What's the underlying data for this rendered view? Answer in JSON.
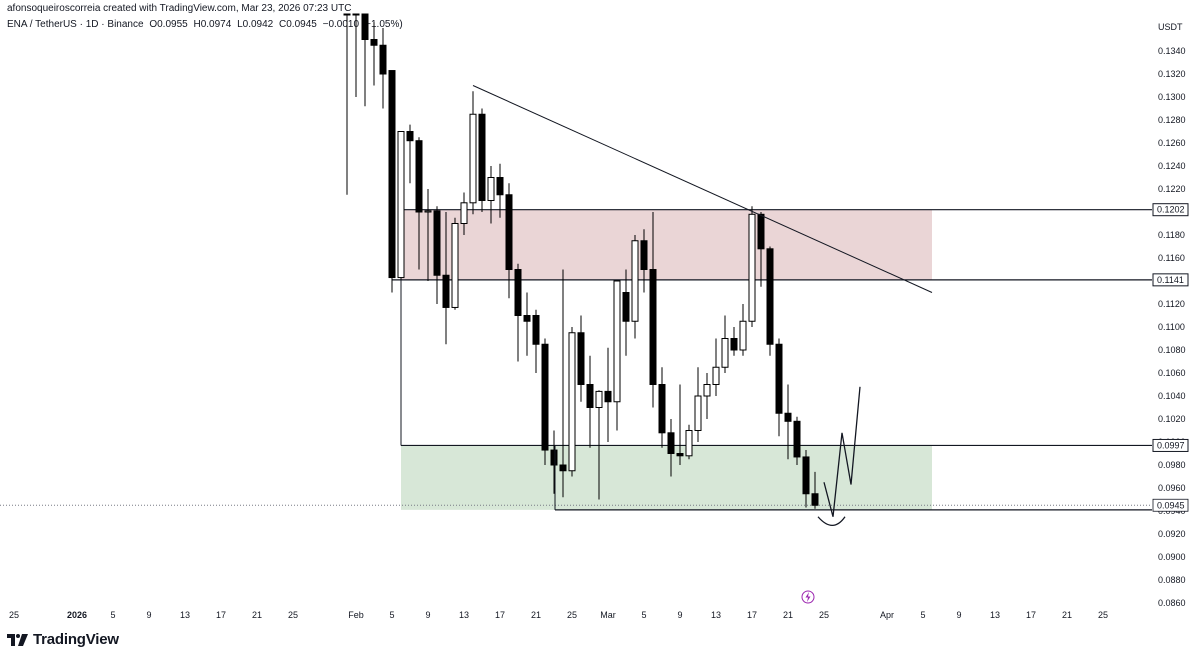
{
  "header": {
    "credit": "afonsoqueiroscorreia created with TradingView.com, Mar 23, 2026 07:23 UTC",
    "symbol": "ENA / TetherUS · 1D · Binance",
    "open": "O0.0955",
    "high": "H0.0974",
    "low": "L0.0942",
    "close": "C0.0945",
    "change": "−0.0010 (−1.05%)"
  },
  "axis": {
    "currency": "USDT"
  },
  "brand": {
    "name": "TradingView"
  },
  "colors": {
    "bull_fill": "#ffffff",
    "bear_fill": "#000000",
    "supply_zone": "#d9b3b5",
    "demand_zone": "#b7d3b7"
  },
  "chart_data": {
    "type": "candlestick",
    "interval": "1D",
    "y_ticks": [
      "0.1340",
      "0.1320",
      "0.1300",
      "0.1280",
      "0.1260",
      "0.1240",
      "0.1220",
      "0.1200",
      "0.1180",
      "0.1160",
      "0.1140",
      "0.1120",
      "0.1100",
      "0.1080",
      "0.1060",
      "0.1040",
      "0.1020",
      "0.1000",
      "0.0980",
      "0.0960",
      "0.0940",
      "0.0920",
      "0.0900",
      "0.0880",
      "0.0860"
    ],
    "x_ticks": [
      {
        "label": "25",
        "date": "2025-12-25"
      },
      {
        "label": "2026",
        "date": "2026-01-01",
        "bold": true
      },
      {
        "label": "5",
        "date": "2026-01-05"
      },
      {
        "label": "9",
        "date": "2026-01-09"
      },
      {
        "label": "13",
        "date": "2026-01-13"
      },
      {
        "label": "17",
        "date": "2026-01-17"
      },
      {
        "label": "21",
        "date": "2026-01-21"
      },
      {
        "label": "25",
        "date": "2026-01-25"
      },
      {
        "label": "Feb",
        "date": "2026-02-01"
      },
      {
        "label": "5",
        "date": "2026-02-05"
      },
      {
        "label": "9",
        "date": "2026-02-09"
      },
      {
        "label": "13",
        "date": "2026-02-13"
      },
      {
        "label": "17",
        "date": "2026-02-17"
      },
      {
        "label": "21",
        "date": "2026-02-21"
      },
      {
        "label": "25",
        "date": "2026-02-25"
      },
      {
        "label": "Mar",
        "date": "2026-03-01"
      },
      {
        "label": "5",
        "date": "2026-03-05"
      },
      {
        "label": "9",
        "date": "2026-03-09"
      },
      {
        "label": "13",
        "date": "2026-03-13"
      },
      {
        "label": "17",
        "date": "2026-03-17"
      },
      {
        "label": "21",
        "date": "2026-03-21"
      },
      {
        "label": "25",
        "date": "2026-03-25"
      },
      {
        "label": "Apr",
        "date": "2026-04-01"
      },
      {
        "label": "5",
        "date": "2026-04-05"
      },
      {
        "label": "9",
        "date": "2026-04-09"
      },
      {
        "label": "13",
        "date": "2026-04-13"
      },
      {
        "label": "17",
        "date": "2026-04-17"
      },
      {
        "label": "21",
        "date": "2026-04-21"
      },
      {
        "label": "25",
        "date": "2026-04-25"
      }
    ],
    "candles": [
      {
        "date": "2026-01-31",
        "o": 0.169,
        "h": 0.172,
        "l": 0.1215,
        "c": 0.16
      },
      {
        "date": "2026-02-01",
        "o": 0.16,
        "h": 0.162,
        "l": 0.13,
        "c": 0.138
      },
      {
        "date": "2026-02-02",
        "o": 0.138,
        "h": 0.14,
        "l": 0.1292,
        "c": 0.135
      },
      {
        "date": "2026-02-03",
        "o": 0.135,
        "h": 0.1365,
        "l": 0.131,
        "c": 0.1345
      },
      {
        "date": "2026-02-04",
        "o": 0.1345,
        "h": 0.136,
        "l": 0.129,
        "c": 0.132
      },
      {
        "date": "2026-02-05",
        "o": 0.1323,
        "h": 0.1323,
        "l": 0.113,
        "c": 0.1143
      },
      {
        "date": "2026-02-06",
        "o": 0.1143,
        "h": 0.127,
        "l": 0.1134,
        "c": 0.127
      },
      {
        "date": "2026-02-07",
        "o": 0.127,
        "h": 0.1276,
        "l": 0.1225,
        "c": 0.1262
      },
      {
        "date": "2026-02-08",
        "o": 0.1262,
        "h": 0.1265,
        "l": 0.115,
        "c": 0.12
      },
      {
        "date": "2026-02-09",
        "o": 0.12,
        "h": 0.122,
        "l": 0.114,
        "c": 0.1201
      },
      {
        "date": "2026-02-10",
        "o": 0.1201,
        "h": 0.1205,
        "l": 0.112,
        "c": 0.1145
      },
      {
        "date": "2026-02-11",
        "o": 0.1145,
        "h": 0.12,
        "l": 0.1085,
        "c": 0.1117
      },
      {
        "date": "2026-02-12",
        "o": 0.1117,
        "h": 0.1195,
        "l": 0.1115,
        "c": 0.119
      },
      {
        "date": "2026-02-13",
        "o": 0.119,
        "h": 0.1217,
        "l": 0.118,
        "c": 0.1208
      },
      {
        "date": "2026-02-14",
        "o": 0.1208,
        "h": 0.1305,
        "l": 0.1198,
        "c": 0.1285
      },
      {
        "date": "2026-02-15",
        "o": 0.1285,
        "h": 0.129,
        "l": 0.12,
        "c": 0.121
      },
      {
        "date": "2026-02-16",
        "o": 0.121,
        "h": 0.124,
        "l": 0.119,
        "c": 0.123
      },
      {
        "date": "2026-02-17",
        "o": 0.123,
        "h": 0.1242,
        "l": 0.1195,
        "c": 0.1215
      },
      {
        "date": "2026-02-18",
        "o": 0.1215,
        "h": 0.1225,
        "l": 0.1125,
        "c": 0.115
      },
      {
        "date": "2026-02-19",
        "o": 0.115,
        "h": 0.1155,
        "l": 0.107,
        "c": 0.111
      },
      {
        "date": "2026-02-20",
        "o": 0.111,
        "h": 0.113,
        "l": 0.1075,
        "c": 0.1105
      },
      {
        "date": "2026-02-21",
        "o": 0.111,
        "h": 0.1115,
        "l": 0.106,
        "c": 0.1085
      },
      {
        "date": "2026-02-22",
        "o": 0.1085,
        "h": 0.109,
        "l": 0.098,
        "c": 0.0993
      },
      {
        "date": "2026-02-23",
        "o": 0.0993,
        "h": 0.101,
        "l": 0.0955,
        "c": 0.098
      },
      {
        "date": "2026-02-24",
        "o": 0.098,
        "h": 0.115,
        "l": 0.0952,
        "c": 0.0975
      },
      {
        "date": "2026-02-25",
        "o": 0.0975,
        "h": 0.11,
        "l": 0.097,
        "c": 0.1095
      },
      {
        "date": "2026-02-26",
        "o": 0.1095,
        "h": 0.111,
        "l": 0.1035,
        "c": 0.105
      },
      {
        "date": "2026-02-27",
        "o": 0.105,
        "h": 0.1075,
        "l": 0.0995,
        "c": 0.103
      },
      {
        "date": "2026-02-28",
        "o": 0.103,
        "h": 0.1045,
        "l": 0.095,
        "c": 0.1044
      },
      {
        "date": "2026-03-01",
        "o": 0.1044,
        "h": 0.1082,
        "l": 0.1,
        "c": 0.1035
      },
      {
        "date": "2026-03-02",
        "o": 0.1035,
        "h": 0.114,
        "l": 0.101,
        "c": 0.114
      },
      {
        "date": "2026-03-03",
        "o": 0.113,
        "h": 0.115,
        "l": 0.1075,
        "c": 0.1105
      },
      {
        "date": "2026-03-04",
        "o": 0.1105,
        "h": 0.118,
        "l": 0.109,
        "c": 0.1175
      },
      {
        "date": "2026-03-05",
        "o": 0.1175,
        "h": 0.1185,
        "l": 0.113,
        "c": 0.115
      },
      {
        "date": "2026-03-06",
        "o": 0.115,
        "h": 0.12,
        "l": 0.103,
        "c": 0.105
      },
      {
        "date": "2026-03-07",
        "o": 0.105,
        "h": 0.1065,
        "l": 0.0995,
        "c": 0.1008
      },
      {
        "date": "2026-03-08",
        "o": 0.1008,
        "h": 0.102,
        "l": 0.097,
        "c": 0.099
      },
      {
        "date": "2026-03-09",
        "o": 0.099,
        "h": 0.105,
        "l": 0.098,
        "c": 0.0988
      },
      {
        "date": "2026-03-10",
        "o": 0.0988,
        "h": 0.1015,
        "l": 0.0985,
        "c": 0.101
      },
      {
        "date": "2026-03-11",
        "o": 0.101,
        "h": 0.1065,
        "l": 0.1,
        "c": 0.104
      },
      {
        "date": "2026-03-12",
        "o": 0.104,
        "h": 0.106,
        "l": 0.102,
        "c": 0.105
      },
      {
        "date": "2026-03-13",
        "o": 0.105,
        "h": 0.109,
        "l": 0.104,
        "c": 0.1065
      },
      {
        "date": "2026-03-14",
        "o": 0.1065,
        "h": 0.111,
        "l": 0.106,
        "c": 0.109
      },
      {
        "date": "2026-03-15",
        "o": 0.109,
        "h": 0.11,
        "l": 0.1075,
        "c": 0.108
      },
      {
        "date": "2026-03-16",
        "o": 0.108,
        "h": 0.112,
        "l": 0.1075,
        "c": 0.1105
      },
      {
        "date": "2026-03-17",
        "o": 0.1105,
        "h": 0.1205,
        "l": 0.11,
        "c": 0.1198
      },
      {
        "date": "2026-03-18",
        "o": 0.1198,
        "h": 0.12,
        "l": 0.1135,
        "c": 0.1168
      },
      {
        "date": "2026-03-19",
        "o": 0.1168,
        "h": 0.117,
        "l": 0.1075,
        "c": 0.1085
      },
      {
        "date": "2026-03-20",
        "o": 0.1085,
        "h": 0.109,
        "l": 0.1005,
        "c": 0.1025
      },
      {
        "date": "2026-03-21",
        "o": 0.1025,
        "h": 0.105,
        "l": 0.0985,
        "c": 0.1018
      },
      {
        "date": "2026-03-22",
        "o": 0.1018,
        "h": 0.1022,
        "l": 0.098,
        "c": 0.0987
      },
      {
        "date": "2026-03-23",
        "o": 0.0987,
        "h": 0.0993,
        "l": 0.0943,
        "c": 0.0955
      },
      {
        "date": "2026-03-24",
        "o": 0.0955,
        "h": 0.0974,
        "l": 0.0942,
        "c": 0.0945
      }
    ],
    "horizontal_levels": [
      {
        "label": "0.1202",
        "value": 0.1202
      },
      {
        "label": "0.1141",
        "value": 0.1141
      },
      {
        "label": "0.0997",
        "value": 0.0997
      },
      {
        "label": "0.0945",
        "value": 0.0945
      }
    ],
    "zones": [
      {
        "name": "supply",
        "from": "2026-02-06",
        "to": "2026-04-06",
        "top": 0.1202,
        "bottom": 0.1141
      },
      {
        "name": "demand",
        "from": "2026-02-06",
        "to": "2026-04-06",
        "top": 0.0997,
        "bottom": 0.0941
      }
    ],
    "trendline": {
      "from": {
        "date": "2026-02-14",
        "value": 0.131
      },
      "to": {
        "date": "2026-04-06",
        "value": 0.113
      }
    },
    "projection_path": [
      {
        "date": "2026-03-25",
        "value": 0.0965
      },
      {
        "date": "2026-03-26",
        "value": 0.0935
      },
      {
        "date": "2026-03-27",
        "value": 0.1008
      },
      {
        "date": "2026-03-28",
        "value": 0.0963
      },
      {
        "date": "2026-03-29",
        "value": 0.1048
      }
    ]
  }
}
